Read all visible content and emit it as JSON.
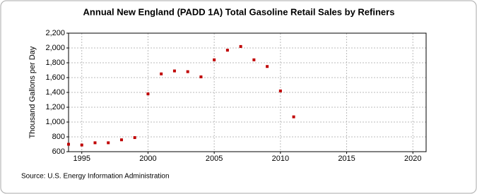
{
  "chart_data": {
    "type": "scatter",
    "title": "Annual New England (PADD 1A) Total Gasoline Retail Sales by Refiners",
    "y_label": "Thousand Gallons per Day",
    "source": "Source: U.S. Energy Information Administration",
    "x": [
      1994,
      1995,
      1996,
      1997,
      1998,
      1999,
      2000,
      2001,
      2002,
      2003,
      2004,
      2005,
      2006,
      2007,
      2008,
      2009,
      2010,
      2011
    ],
    "series": [
      {
        "name": "Total Gasoline Retail Sales by Refiners",
        "color": "#c00000",
        "values": [
          700,
          690,
          720,
          720,
          760,
          790,
          1380,
          1650,
          1690,
          1680,
          1610,
          1840,
          1970,
          2020,
          1840,
          1750,
          1420,
          1070
        ]
      }
    ],
    "xlim": [
      1994,
      2021
    ],
    "xticks": [
      1995,
      2000,
      2005,
      2010,
      2015,
      2020
    ],
    "ylim": [
      600,
      2200
    ],
    "yticks": [
      600,
      800,
      {
        "value": 1000,
        "label": "1,000"
      },
      {
        "value": 1200,
        "label": "1,200"
      },
      {
        "value": 1400,
        "label": "1,400"
      },
      {
        "value": 1600,
        "label": "1,600"
      },
      {
        "value": 1800,
        "label": "1,800"
      },
      {
        "value": 2000,
        "label": "2,000"
      },
      {
        "value": 2200,
        "label": "2,200"
      }
    ],
    "grid": true
  }
}
